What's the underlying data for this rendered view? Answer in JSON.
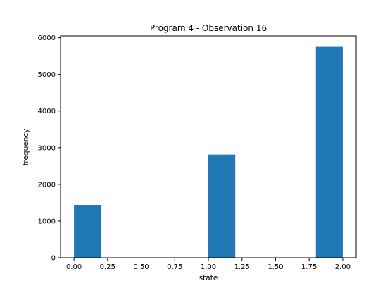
{
  "chart_data": {
    "type": "bar",
    "title": "Program 4 - Observation 16",
    "xlabel": "state",
    "ylabel": "frequency",
    "xlim": [
      -0.1,
      2.1
    ],
    "ylim": [
      0,
      6050
    ],
    "bins": [
      {
        "start": 0.0,
        "end": 0.2,
        "value": 1440
      },
      {
        "start": 0.2,
        "end": 0.4,
        "value": 0
      },
      {
        "start": 0.4,
        "end": 0.6,
        "value": 0
      },
      {
        "start": 0.6,
        "end": 0.8,
        "value": 0
      },
      {
        "start": 0.8,
        "end": 1.0,
        "value": 0
      },
      {
        "start": 1.0,
        "end": 1.2,
        "value": 2810
      },
      {
        "start": 1.2,
        "end": 1.4,
        "value": 0
      },
      {
        "start": 1.4,
        "end": 1.6,
        "value": 0
      },
      {
        "start": 1.6,
        "end": 1.8,
        "value": 0
      },
      {
        "start": 1.8,
        "end": 2.0,
        "value": 5750
      }
    ],
    "xticks": [
      0.0,
      0.25,
      0.5,
      0.75,
      1.0,
      1.25,
      1.5,
      1.75,
      2.0
    ],
    "xtick_labels": [
      "0.00",
      "0.25",
      "0.50",
      "0.75",
      "1.00",
      "1.25",
      "1.50",
      "1.75",
      "2.00"
    ],
    "yticks": [
      0,
      1000,
      2000,
      3000,
      4000,
      5000,
      6000
    ],
    "ytick_labels": [
      "0",
      "1000",
      "2000",
      "3000",
      "4000",
      "5000",
      "6000"
    ],
    "bar_color": "#1f77b4",
    "grid": false,
    "legend": "none"
  }
}
